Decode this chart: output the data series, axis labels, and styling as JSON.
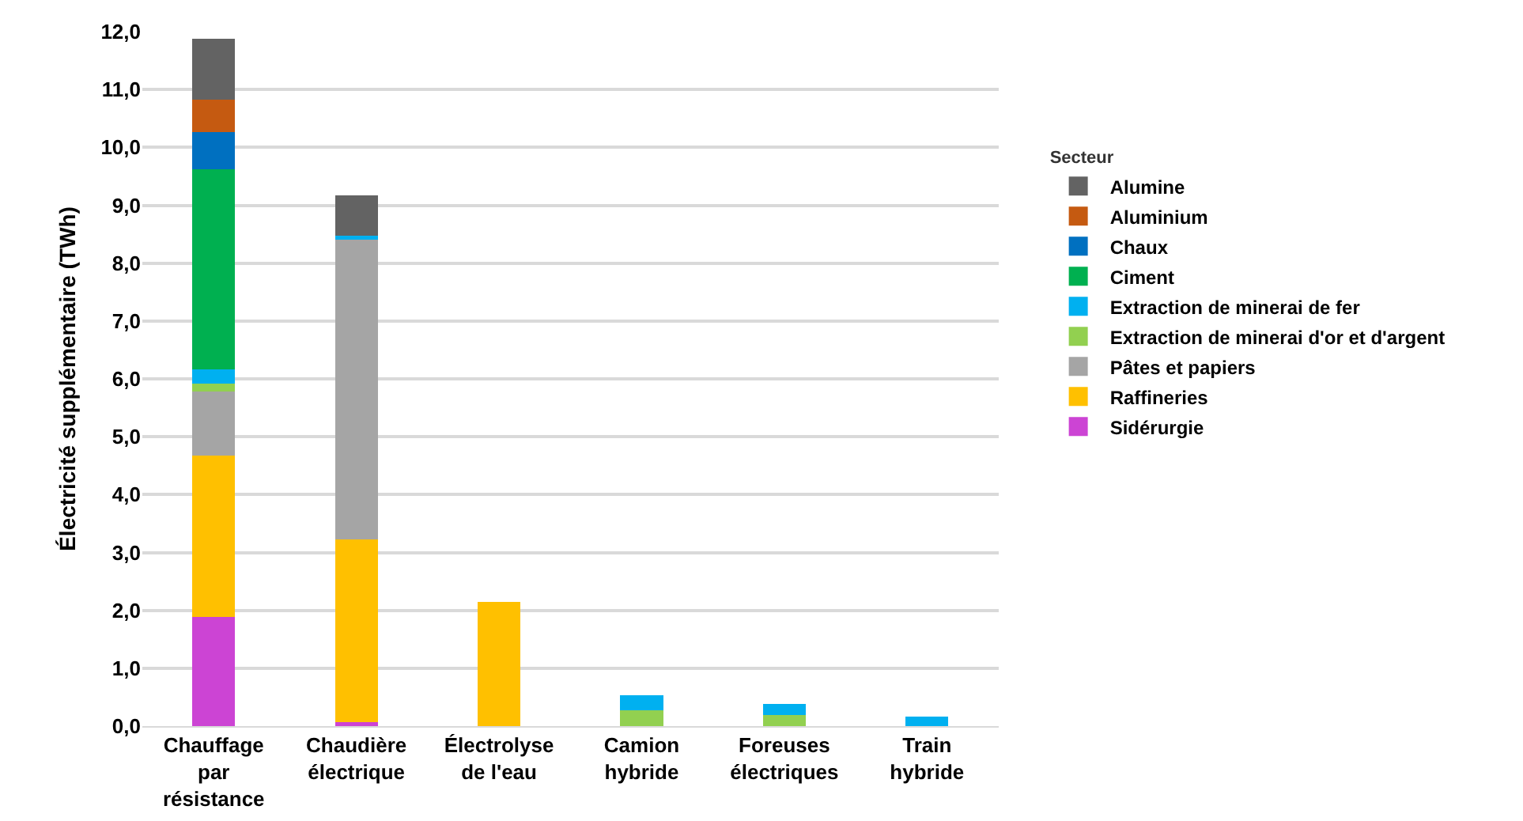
{
  "chart_data": {
    "type": "bar",
    "stacked": true,
    "ylabel": "Électricité supplémentaire (TWh)",
    "legend_title": "Secteur",
    "categories": [
      "Chauffage par résistance",
      "Chaudière électrique",
      "Électrolyse de l'eau",
      "Camion hybride",
      "Foreuses électriques",
      "Train hybride"
    ],
    "series": [
      {
        "name": "Sidérurgie",
        "color": "#cc44d4",
        "values": [
          1.88,
          0.07,
          null,
          null,
          null,
          null
        ]
      },
      {
        "name": "Raffineries",
        "color": "#ffc000",
        "values": [
          2.8,
          3.15,
          2.15,
          null,
          null,
          null
        ]
      },
      {
        "name": "Pâtes et papiers",
        "color": "#a5a5a5",
        "values": [
          1.1,
          5.18,
          null,
          null,
          null,
          null
        ]
      },
      {
        "name": "Extraction de minerai d'or et d'argent",
        "color": "#92d050",
        "values": [
          0.14,
          null,
          null,
          0.27,
          0.19,
          null
        ]
      },
      {
        "name": "Extraction de minerai de fer",
        "color": "#00b0f0",
        "values": [
          0.25,
          0.07,
          null,
          0.26,
          0.19,
          0.16
        ]
      },
      {
        "name": "Ciment",
        "color": "#00b050",
        "values": [
          3.45,
          null,
          null,
          null,
          null,
          null
        ]
      },
      {
        "name": "Chaux",
        "color": "#0070c0",
        "values": [
          0.65,
          null,
          null,
          null,
          null,
          null
        ]
      },
      {
        "name": "Aluminium",
        "color": "#c55a11",
        "values": [
          0.55,
          null,
          null,
          null,
          null,
          null
        ]
      },
      {
        "name": "Alumine",
        "color": "#636363",
        "values": [
          1.06,
          0.7,
          null,
          null,
          null,
          null
        ]
      }
    ],
    "ylim": [
      0,
      12
    ],
    "yticks": [
      {
        "value": 0,
        "label": "0,0"
      },
      {
        "value": 1,
        "label": "1,0"
      },
      {
        "value": 2,
        "label": "2,0"
      },
      {
        "value": 3,
        "label": "3,0"
      },
      {
        "value": 4,
        "label": "4,0"
      },
      {
        "value": 5,
        "label": "5,0"
      },
      {
        "value": 6,
        "label": "6,0"
      },
      {
        "value": 7,
        "label": "7,0"
      },
      {
        "value": 8,
        "label": "8,0"
      },
      {
        "value": 9,
        "label": "9,0"
      },
      {
        "value": 10,
        "label": "10,0"
      },
      {
        "value": 11,
        "label": "11,0"
      },
      {
        "value": 12,
        "label": "12,0"
      }
    ],
    "grid": "y",
    "legend": "right"
  }
}
